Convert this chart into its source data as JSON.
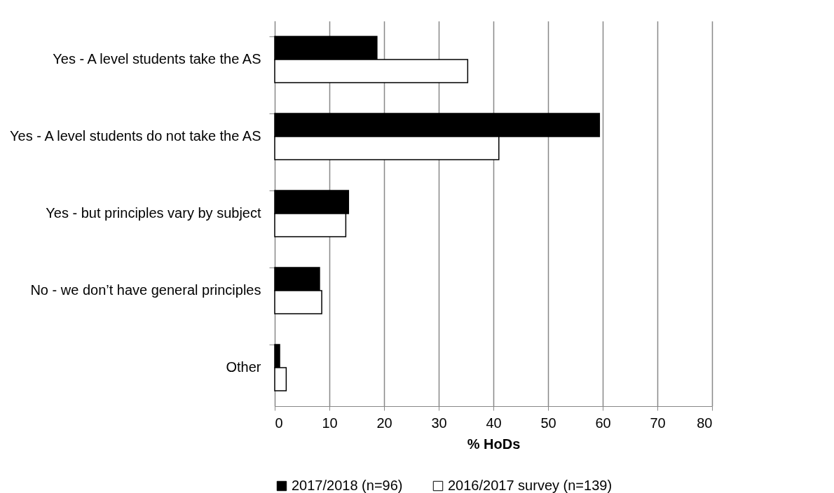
{
  "chart_data": {
    "type": "bar",
    "orientation": "horizontal",
    "xlabel": "% HoDs",
    "categories": [
      "Yes - A level students take the AS",
      "Yes - A level students do not take the AS",
      "Yes - but principles vary by subject",
      "No - we don’t have general principles",
      "Other"
    ],
    "series": [
      {
        "name": "2017/2018 (n=96)",
        "color": "#000000",
        "values": [
          18.7,
          59.4,
          13.5,
          8.2,
          0.9
        ]
      },
      {
        "name": "2016/2017 survey (n=139)",
        "color": "#ffffff",
        "values": [
          35.3,
          41.0,
          13.0,
          8.6,
          2.1
        ]
      }
    ],
    "xlim": [
      0,
      80
    ],
    "xticks": [
      0,
      10,
      20,
      30,
      40,
      50,
      60,
      70,
      80
    ],
    "grid": "x",
    "legend": "bottom"
  }
}
